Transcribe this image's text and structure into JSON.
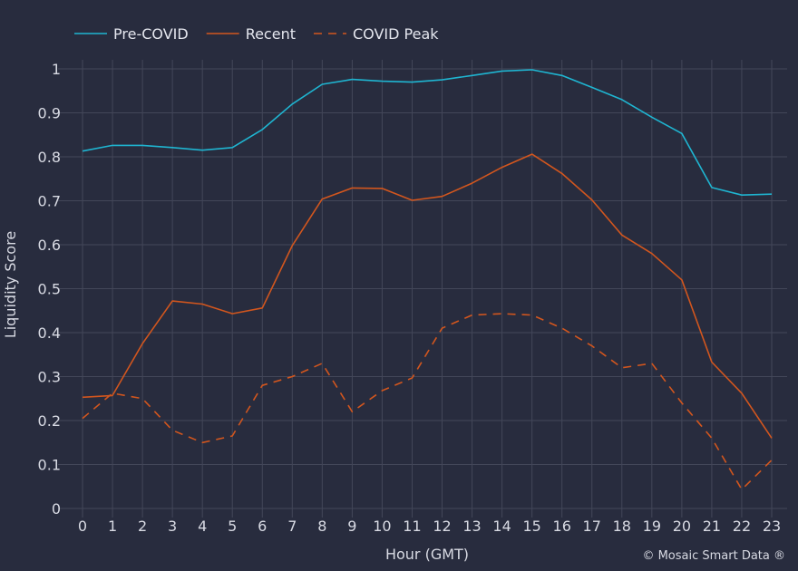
{
  "chart_data": {
    "type": "line",
    "x": [
      0,
      1,
      2,
      3,
      4,
      5,
      6,
      7,
      8,
      9,
      10,
      11,
      12,
      13,
      14,
      15,
      16,
      17,
      18,
      19,
      20,
      21,
      22,
      23
    ],
    "series": [
      {
        "name": "Pre-COVID",
        "color": "#1fb5d1",
        "dash": "solid",
        "values": [
          0.813,
          0.826,
          0.826,
          0.821,
          0.815,
          0.821,
          0.862,
          0.92,
          0.965,
          0.976,
          0.972,
          0.97,
          0.975,
          0.985,
          0.995,
          0.998,
          0.985,
          0.958,
          0.93,
          0.89,
          0.853,
          0.73,
          0.713,
          0.715
        ]
      },
      {
        "name": "Recent",
        "color": "#d2561e",
        "dash": "solid",
        "values": [
          0.253,
          0.257,
          0.375,
          0.472,
          0.465,
          0.443,
          0.456,
          0.598,
          0.704,
          0.729,
          0.728,
          0.701,
          0.71,
          0.74,
          0.776,
          0.806,
          0.762,
          0.702,
          0.622,
          0.58,
          0.52,
          0.333,
          0.262,
          0.16
        ]
      },
      {
        "name": "COVID Peak",
        "color": "#d2561e",
        "dash": "dashed",
        "values": [
          0.205,
          0.262,
          0.25,
          0.178,
          0.15,
          0.165,
          0.28,
          0.3,
          0.33,
          0.22,
          0.268,
          0.297,
          0.41,
          0.44,
          0.443,
          0.44,
          0.41,
          0.37,
          0.32,
          0.33,
          0.24,
          0.16,
          0.043,
          0.11
        ]
      }
    ],
    "title": "",
    "xlabel": "Hour (GMT)",
    "ylabel": "Liquidity Score",
    "xlim": [
      0,
      23
    ],
    "ylim": [
      0,
      1
    ],
    "yticks": [
      "0",
      "0.1",
      "0.2",
      "0.3",
      "0.4",
      "0.5",
      "0.6",
      "0.7",
      "0.8",
      "0.9",
      "1"
    ],
    "xticks": [
      "0",
      "1",
      "2",
      "3",
      "4",
      "5",
      "6",
      "7",
      "8",
      "9",
      "10",
      "11",
      "12",
      "13",
      "14",
      "15",
      "16",
      "17",
      "18",
      "19",
      "20",
      "21",
      "22",
      "23"
    ],
    "grid": true,
    "legend_position": "top-left",
    "footer": "© Mosaic Smart Data ®",
    "background_color": "#282c3e",
    "grid_color": "#434759"
  }
}
